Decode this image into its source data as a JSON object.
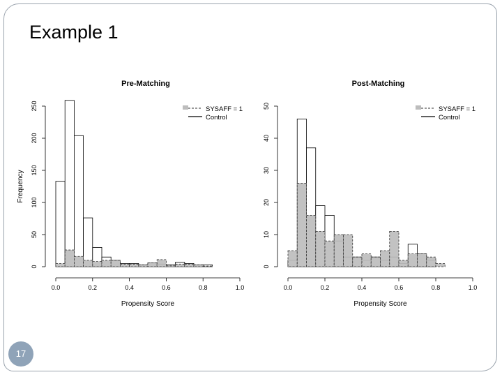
{
  "slide": {
    "title": "Example 1",
    "page_number": "17"
  },
  "colors": {
    "frame": "#9aa3ad",
    "treated_fill": "#bdbdbd",
    "page_badge": "#8fa3b8"
  },
  "chart_data": [
    {
      "type": "bar",
      "title": "Pre-Matching",
      "xlabel": "Propensity Score",
      "ylabel": "Frequency",
      "xlim": [
        0.0,
        1.0
      ],
      "ylim": [
        0,
        250
      ],
      "xticks": [
        0.0,
        0.2,
        0.4,
        0.6,
        0.8,
        1.0
      ],
      "xtick_labels": [
        "0.0",
        "0.2",
        "0.4",
        "0.6",
        "0.8",
        "1.0"
      ],
      "yticks": [
        0,
        50,
        100,
        150,
        200,
        250
      ],
      "ytick_labels": [
        "0",
        "50",
        "100",
        "150",
        "200",
        "250"
      ],
      "bin_width": 0.05,
      "bin_starts": [
        0.0,
        0.05,
        0.1,
        0.15,
        0.2,
        0.25,
        0.3,
        0.35,
        0.4,
        0.45,
        0.5,
        0.55,
        0.6,
        0.65,
        0.7,
        0.75,
        0.8
      ],
      "legend": {
        "position": "top-right",
        "entries": [
          "SYSAFF = 1",
          "Control"
        ]
      },
      "series": [
        {
          "name": "Control",
          "values": [
            133,
            259,
            204,
            76,
            30,
            15,
            10,
            5,
            5,
            3,
            6,
            4,
            3,
            7,
            5,
            3,
            3
          ]
        },
        {
          "name": "SYSAFF = 1",
          "values": [
            5,
            26,
            16,
            10,
            8,
            10,
            10,
            4,
            4,
            3,
            6,
            11,
            2,
            4,
            4,
            3,
            1
          ]
        }
      ]
    },
    {
      "type": "bar",
      "title": "Post-Matching",
      "xlabel": "Propensity Score",
      "ylabel": "",
      "xlim": [
        0.0,
        1.0
      ],
      "ylim": [
        0,
        50
      ],
      "xticks": [
        0.0,
        0.2,
        0.4,
        0.6,
        0.8,
        1.0
      ],
      "xtick_labels": [
        "0.0",
        "0.2",
        "0.4",
        "0.6",
        "0.8",
        "1.0"
      ],
      "yticks": [
        0,
        10,
        20,
        30,
        40,
        50
      ],
      "ytick_labels": [
        "0",
        "10",
        "20",
        "30",
        "40",
        "50"
      ],
      "bin_width": 0.05,
      "bin_starts": [
        0.0,
        0.05,
        0.1,
        0.15,
        0.2,
        0.25,
        0.3,
        0.35,
        0.4,
        0.45,
        0.5,
        0.55,
        0.6,
        0.65,
        0.7,
        0.75,
        0.8
      ],
      "legend": {
        "position": "top-right",
        "entries": [
          "SYSAFF = 1",
          "Control"
        ]
      },
      "series": [
        {
          "name": "Control",
          "values": [
            2,
            46,
            37,
            19,
            16,
            8,
            3,
            3,
            2,
            3,
            2,
            3,
            1,
            7,
            4,
            2,
            0
          ]
        },
        {
          "name": "SYSAFF = 1",
          "values": [
            5,
            26,
            16,
            11,
            8,
            10,
            10,
            3,
            4,
            3,
            5,
            11,
            2,
            4,
            4,
            3,
            1
          ]
        }
      ]
    }
  ]
}
